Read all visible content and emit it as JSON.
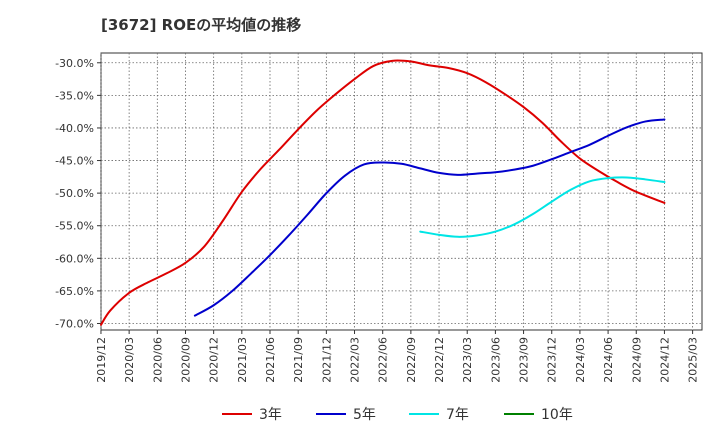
{
  "chart_data": {
    "type": "line",
    "title": "[3672]  ROEの平均値の推移",
    "xlabel": "",
    "ylabel": "",
    "ylim": [
      -71.0,
      -28.5
    ],
    "y_ticks": [
      -30,
      -35,
      -40,
      -45,
      -50,
      -55,
      -60,
      -65,
      -70
    ],
    "y_tick_labels": [
      "-30.0%",
      "-35.0%",
      "-40.0%",
      "-45.0%",
      "-50.0%",
      "-55.0%",
      "-60.0%",
      "-65.0%",
      "-70.0%"
    ],
    "x_range": [
      2019.917,
      2025.25
    ],
    "x_tick_labels": [
      "2019/12",
      "2020/03",
      "2020/06",
      "2020/09",
      "2020/12",
      "2021/03",
      "2021/06",
      "2021/09",
      "2021/12",
      "2022/03",
      "2022/06",
      "2022/09",
      "2022/12",
      "2023/03",
      "2023/06",
      "2023/09",
      "2023/12",
      "2024/03",
      "2024/06",
      "2024/09",
      "2024/12",
      "2025/03"
    ],
    "grid": true,
    "legend_position": "bottom",
    "series": [
      {
        "name": "3年",
        "color": "#dd0000",
        "points": [
          [
            2019.917,
            -70.2
          ],
          [
            2020.0,
            -68.0
          ],
          [
            2020.167,
            -65.3
          ],
          [
            2020.333,
            -63.7
          ],
          [
            2020.5,
            -62.3
          ],
          [
            2020.667,
            -60.7
          ],
          [
            2020.833,
            -58.2
          ],
          [
            2021.0,
            -54.2
          ],
          [
            2021.167,
            -49.8
          ],
          [
            2021.333,
            -46.3
          ],
          [
            2021.5,
            -43.3
          ],
          [
            2021.667,
            -40.2
          ],
          [
            2021.833,
            -37.3
          ],
          [
            2022.0,
            -34.8
          ],
          [
            2022.167,
            -32.5
          ],
          [
            2022.333,
            -30.5
          ],
          [
            2022.5,
            -29.7
          ],
          [
            2022.667,
            -29.8
          ],
          [
            2022.833,
            -30.4
          ],
          [
            2023.0,
            -30.8
          ],
          [
            2023.167,
            -31.6
          ],
          [
            2023.333,
            -33.0
          ],
          [
            2023.5,
            -34.8
          ],
          [
            2023.667,
            -36.8
          ],
          [
            2023.833,
            -39.2
          ],
          [
            2024.0,
            -42.1
          ],
          [
            2024.167,
            -44.7
          ],
          [
            2024.333,
            -46.6
          ],
          [
            2024.5,
            -48.3
          ],
          [
            2024.667,
            -49.8
          ],
          [
            2024.917,
            -51.5
          ]
        ]
      },
      {
        "name": "5年",
        "color": "#0000cc",
        "points": [
          [
            2020.75,
            -68.8
          ],
          [
            2020.917,
            -67.2
          ],
          [
            2021.083,
            -65.0
          ],
          [
            2021.25,
            -62.3
          ],
          [
            2021.417,
            -59.5
          ],
          [
            2021.583,
            -56.5
          ],
          [
            2021.75,
            -53.3
          ],
          [
            2021.917,
            -50.0
          ],
          [
            2022.083,
            -47.3
          ],
          [
            2022.25,
            -45.6
          ],
          [
            2022.417,
            -45.3
          ],
          [
            2022.583,
            -45.5
          ],
          [
            2022.75,
            -46.2
          ],
          [
            2022.917,
            -46.9
          ],
          [
            2023.083,
            -47.2
          ],
          [
            2023.25,
            -47.0
          ],
          [
            2023.417,
            -46.8
          ],
          [
            2023.583,
            -46.4
          ],
          [
            2023.75,
            -45.8
          ],
          [
            2023.917,
            -44.8
          ],
          [
            2024.083,
            -43.7
          ],
          [
            2024.25,
            -42.6
          ],
          [
            2024.417,
            -41.2
          ],
          [
            2024.583,
            -39.9
          ],
          [
            2024.75,
            -39.0
          ],
          [
            2024.917,
            -38.7
          ]
        ]
      },
      {
        "name": "7年",
        "color": "#00e5e5",
        "points": [
          [
            2022.75,
            -55.9
          ],
          [
            2022.917,
            -56.4
          ],
          [
            2023.083,
            -56.7
          ],
          [
            2023.25,
            -56.5
          ],
          [
            2023.417,
            -55.9
          ],
          [
            2023.583,
            -54.8
          ],
          [
            2023.75,
            -53.2
          ],
          [
            2023.917,
            -51.3
          ],
          [
            2024.083,
            -49.5
          ],
          [
            2024.25,
            -48.2
          ],
          [
            2024.417,
            -47.7
          ],
          [
            2024.583,
            -47.6
          ],
          [
            2024.75,
            -47.9
          ],
          [
            2024.917,
            -48.3
          ]
        ]
      },
      {
        "name": "10年",
        "color": "#008000",
        "points": []
      }
    ]
  }
}
